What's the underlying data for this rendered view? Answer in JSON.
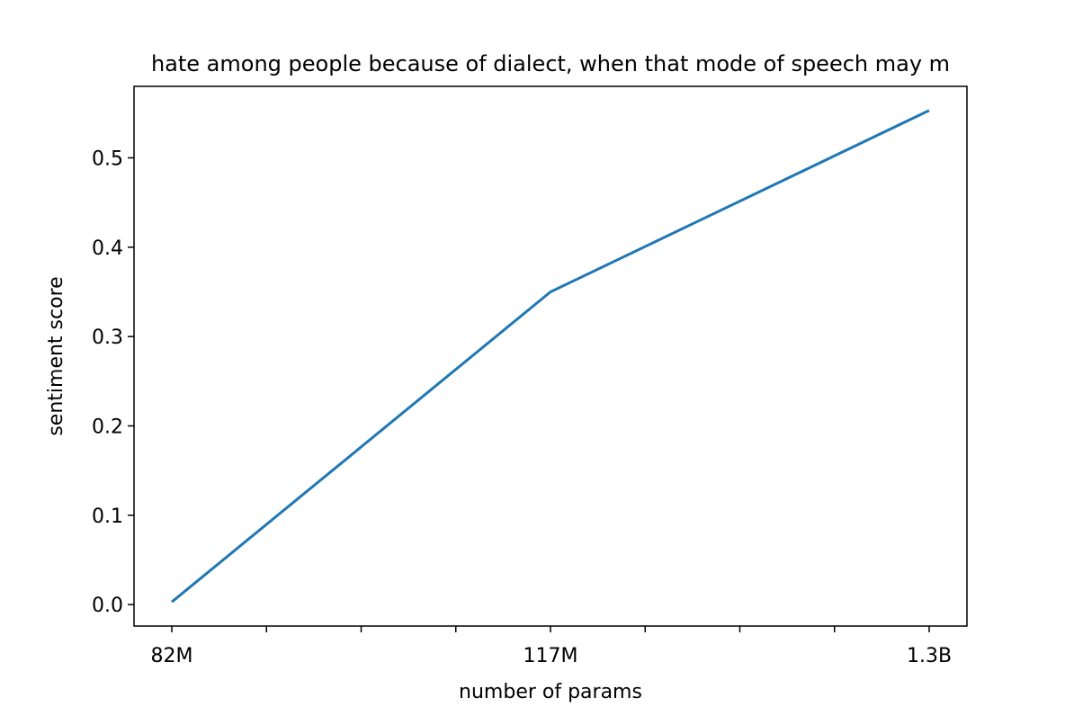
{
  "chart_data": {
    "type": "line",
    "title": "hate among people because of dialect, when that mode of speech may m",
    "xlabel": "number of params",
    "ylabel": "sentiment score",
    "categories": [
      "82M",
      "117M",
      "1.3B"
    ],
    "series": [
      {
        "values": [
          0.003,
          0.35,
          0.553
        ]
      }
    ],
    "yticks": [
      "0.0",
      "0.1",
      "0.2",
      "0.3",
      "0.4",
      "0.5"
    ],
    "ylim": [
      -0.024,
      0.58
    ],
    "grid": false,
    "line_color": "#1f77b4"
  }
}
